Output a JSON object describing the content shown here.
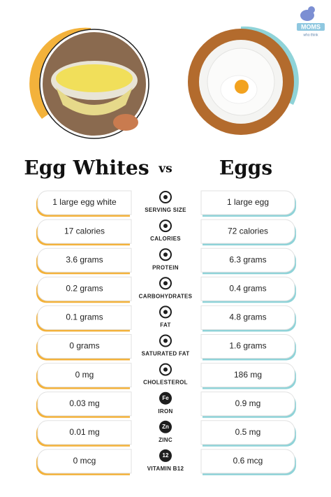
{
  "logo": {
    "brand": "MOMS",
    "tagline": "who think"
  },
  "title": {
    "left": "Egg Whites",
    "vs": "vs",
    "right": "Eggs"
  },
  "rows": [
    {
      "label": "SERVING SIZE",
      "egg_whites": "1 large egg white",
      "eggs": "1 large egg"
    },
    {
      "label": "CALORIES",
      "egg_whites": "17 calories",
      "eggs": "72 calories"
    },
    {
      "label": "PROTEIN",
      "egg_whites": "3.6 grams",
      "eggs": "6.3 grams"
    },
    {
      "label": "CARBOHYDRATES",
      "egg_whites": "0.2 grams",
      "eggs": "0.4 grams"
    },
    {
      "label": "FAT",
      "egg_whites": "0.1 grams",
      "eggs": "4.8 grams"
    },
    {
      "label": "SATURATED FAT",
      "egg_whites": "0 grams",
      "eggs": "1.6 grams"
    },
    {
      "label": "CHOLESTEROL",
      "egg_whites": "0 mg",
      "eggs": "186 mg"
    },
    {
      "label": "IRON",
      "icon_text": "Fe",
      "egg_whites": "0.03 mg",
      "eggs": "0.9 mg"
    },
    {
      "label": "ZINC",
      "icon_text": "Zn",
      "egg_whites": "0.01 mg",
      "eggs": "0.5 mg"
    },
    {
      "label": "VITAMIN B12",
      "icon_text": "12",
      "egg_whites": "0 mcg",
      "eggs": "0.6 mcg"
    }
  ]
}
